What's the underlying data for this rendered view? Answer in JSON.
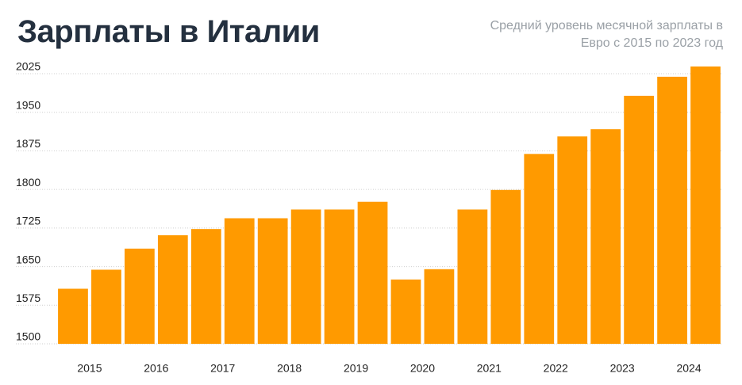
{
  "chart_data": {
    "type": "bar",
    "title": "Зарплаты в Италии",
    "subtitle": "Средний уровень месячной зарплаты в Евро с 2015 по 2023 год",
    "categories": [
      "2015",
      null,
      "2016",
      null,
      "2017",
      null,
      "2018",
      null,
      "2019",
      null,
      "2020",
      null,
      "2021",
      null,
      "2022",
      null,
      "2023",
      null,
      "2024",
      null
    ],
    "values": [
      1607,
      1644,
      1685,
      1711,
      1723,
      1744,
      1744,
      1761,
      1761,
      1776,
      1625,
      1645,
      1761,
      1799,
      1869,
      1903,
      1917,
      1982,
      2019,
      2039
    ],
    "color": "#ff9a00",
    "ylim": [
      1500,
      2045
    ],
    "yticks": [
      1500,
      1575,
      1650,
      1725,
      1800,
      1875,
      1950,
      2025
    ],
    "grid": true
  }
}
